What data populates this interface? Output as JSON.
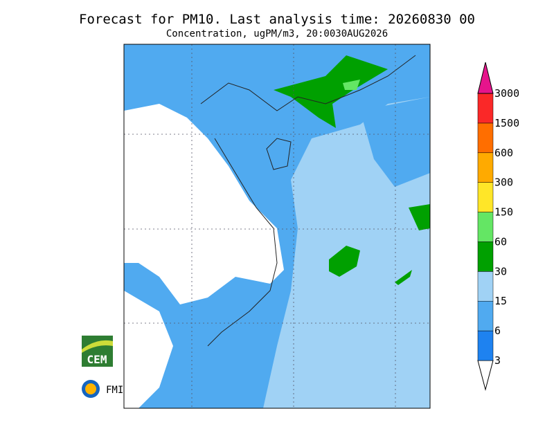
{
  "header": {
    "title": "Forecast for PM10. Last analysis time: 20260830 00",
    "subtitle": "Concentration, ugPM/m3, 20:0030AUG2026"
  },
  "colorbar": {
    "labels": [
      "3",
      "6",
      "15",
      "30",
      "60",
      "150",
      "300",
      "600",
      "1500",
      "3000"
    ],
    "colors": [
      "#ffffff",
      "#1e82f0",
      "#50aaf0",
      "#a0d2f5",
      "#00a000",
      "#64e664",
      "#ffe628",
      "#ffaa00",
      "#ff6e00",
      "#fa2828",
      "#e6148c"
    ]
  },
  "logos": {
    "cem": "CEM",
    "fmi": "FMI"
  }
}
